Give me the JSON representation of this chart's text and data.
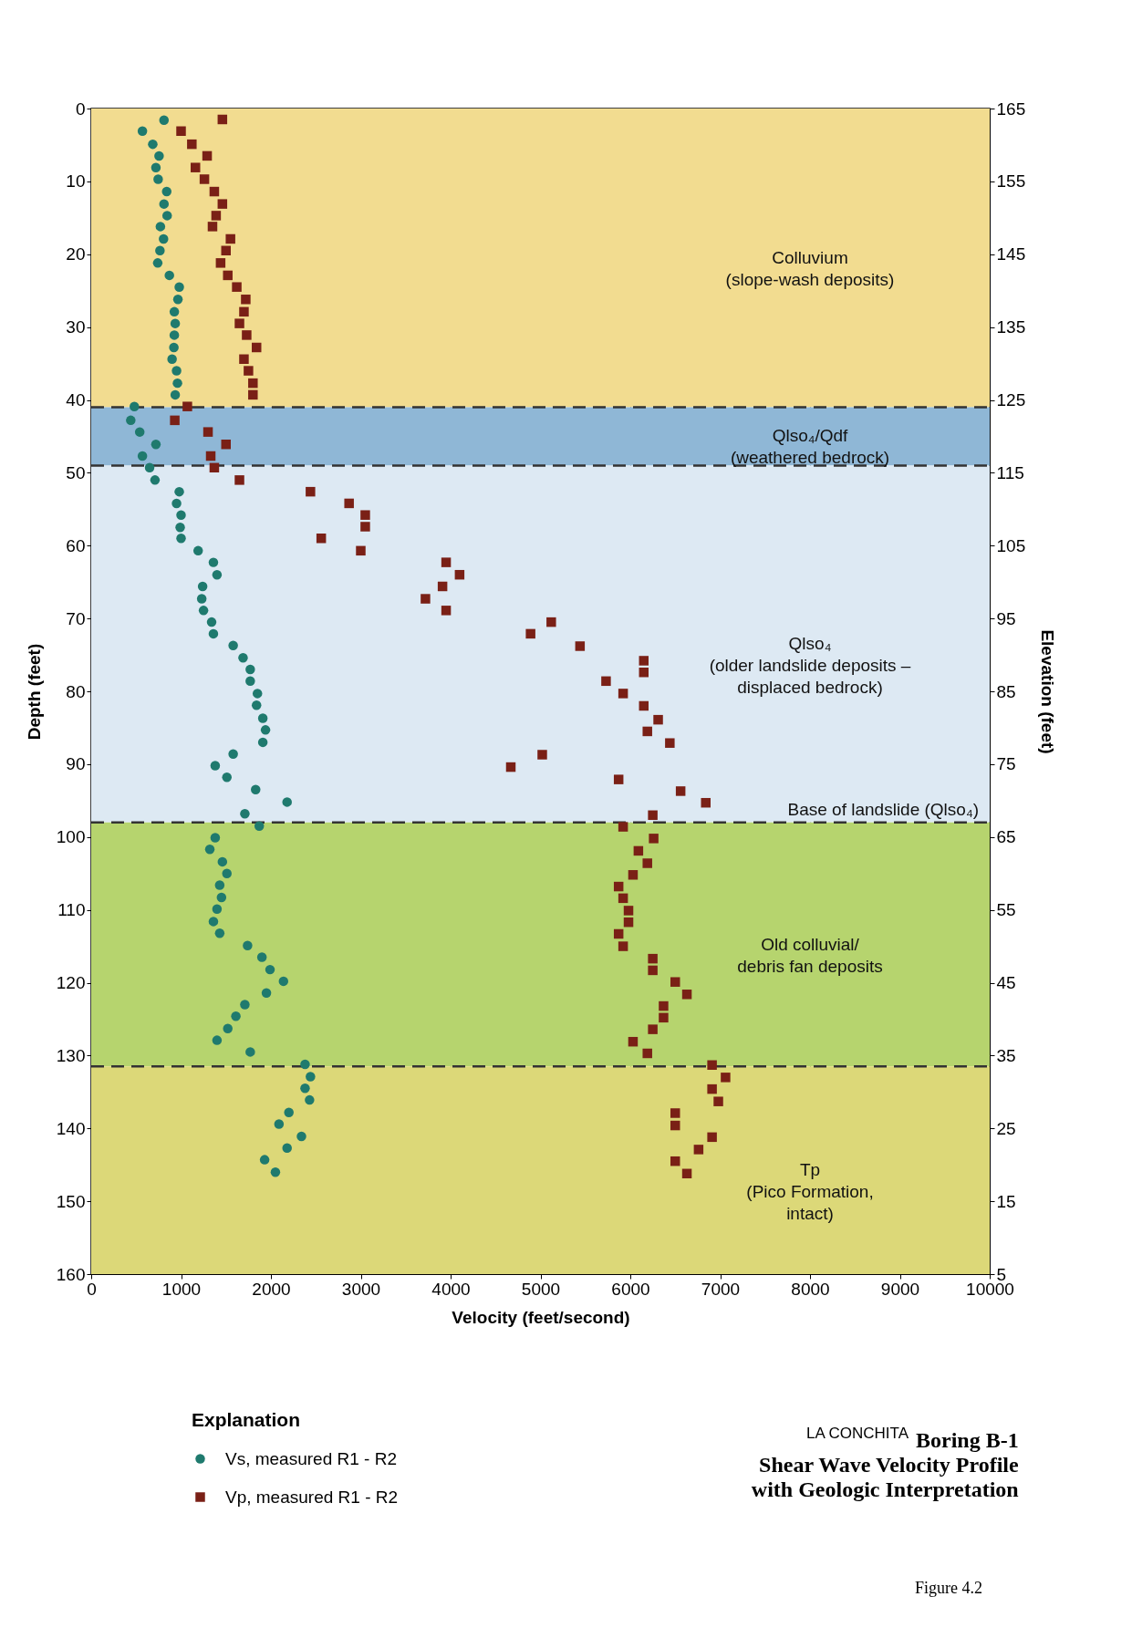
{
  "chart_data": {
    "type": "scatter",
    "title": "Boring B-1\nShear Wave Velocity Profile\nwith Geologic Interpretation",
    "xlabel": "Velocity (feet/second)",
    "ylabel": "Depth (feet)",
    "y2label": "Elevation (feet)",
    "legend_title": "Explanation",
    "legend": "bottom left",
    "grid": true,
    "xlim": [
      0,
      10000
    ],
    "xticks": [
      0,
      1000,
      2000,
      3000,
      4000,
      5000,
      6000,
      7000,
      8000,
      9000,
      10000
    ],
    "ylim": [
      160,
      0
    ],
    "yticks": [
      0,
      10,
      20,
      30,
      40,
      50,
      60,
      70,
      80,
      90,
      100,
      110,
      120,
      130,
      140,
      150,
      160
    ],
    "y2lim": [
      5,
      165
    ],
    "y2ticks": [
      5,
      15,
      25,
      35,
      45,
      55,
      65,
      75,
      85,
      95,
      105,
      115,
      125,
      135,
      145,
      155,
      165
    ],
    "series": [
      {
        "name": "Vs, measured  R1 - R2",
        "color": "#1f7a6e",
        "marker": "circle",
        "x": [
          810,
          570,
          685,
          755,
          720,
          745,
          840,
          810,
          845,
          770,
          805,
          765,
          740,
          870,
          980,
          965,
          925,
          935,
          925,
          920,
          900,
          950,
          960,
          935,
          480,
          440,
          540,
          720,
          570,
          650,
          710,
          980,
          950,
          1000,
          990,
          1000,
          1190,
          1360,
          1400,
          1240,
          1230,
          1250,
          1340,
          1360,
          1580,
          1690,
          1770,
          1770,
          1850,
          1840,
          1910,
          1940,
          1910,
          1580,
          1380,
          1510,
          1830,
          2180,
          1710,
          1870,
          1380,
          1320,
          1460,
          1510,
          1430,
          1450,
          1400,
          1360,
          1430,
          1740,
          1900,
          1990,
          2140,
          1950,
          1710,
          1610,
          1520,
          1400,
          1770,
          2380,
          2440,
          2380,
          2430,
          2200,
          2090,
          2340,
          2180,
          1930,
          2050
        ],
        "values": [
          1.6,
          3.1,
          4.9,
          6.5,
          8.1,
          9.7,
          11.4,
          13.1,
          14.7,
          16.2,
          17.9,
          19.5,
          21.2,
          22.9,
          24.5,
          26.2,
          27.9,
          29.5,
          31.1,
          32.8,
          34.4,
          36,
          37.7,
          39.3,
          40.9,
          42.8,
          44.4,
          46.1,
          47.7,
          49.3,
          51,
          52.6,
          54.2,
          55.8,
          57.5,
          59,
          60.7,
          62.3,
          64,
          65.6,
          67.3,
          68.9,
          70.5,
          72.1,
          73.7,
          75.4,
          77,
          78.6,
          80.3,
          81.9,
          83.7,
          85.3,
          87,
          88.6,
          90.2,
          91.8,
          93.5,
          95.2,
          96.8,
          98.5,
          100.1,
          101.7,
          103.4,
          105,
          106.6,
          108.3,
          109.9,
          111.6,
          113.2,
          114.9,
          116.5,
          118.2,
          119.8,
          121.4,
          123,
          124.6,
          126.3,
          127.9,
          129.5,
          131.2,
          132.9,
          134.5,
          136.1,
          137.8,
          139.4,
          141.1,
          142.7,
          144.3,
          146
        ]
      },
      {
        "name": "Vp, measured  R1 - R2",
        "color": "#7a2016",
        "marker": "square",
        "x": [
          1460,
          1000,
          1120,
          1290,
          1160,
          1260,
          1370,
          1460,
          1390,
          1350,
          1550,
          1500,
          1440,
          1520,
          1620,
          1720,
          1700,
          1650,
          1730,
          1840,
          1700,
          1750,
          1800,
          1800,
          1070,
          930,
          1300,
          1500,
          1330,
          1370,
          1650,
          2440,
          2870,
          3050,
          3050,
          2560,
          3000,
          3950,
          4100,
          3910,
          3720,
          3950,
          5120,
          4890,
          5440,
          6150,
          6150,
          5730,
          5920,
          6150,
          6310,
          6190,
          6440,
          5020,
          4670,
          5870,
          6560,
          6840,
          6250,
          5920,
          6260,
          6090,
          6190,
          6030,
          5870,
          5920,
          5980,
          5980,
          5870,
          5920,
          6250,
          6250,
          6500,
          6630,
          6370,
          6370,
          6250,
          6030,
          6190,
          6910,
          7060,
          6910,
          6980,
          6500,
          6500,
          6910,
          6760,
          6500,
          6630
        ],
        "values": [
          1.5,
          3.1,
          4.9,
          6.5,
          8.1,
          9.7,
          11.4,
          13.1,
          14.7,
          16.2,
          17.9,
          19.5,
          21.2,
          22.9,
          24.5,
          26.2,
          27.9,
          29.5,
          31.1,
          32.8,
          34.4,
          36,
          37.7,
          39.3,
          40.9,
          42.8,
          44.4,
          46.1,
          47.7,
          49.3,
          51,
          52.6,
          54.2,
          55.8,
          57.4,
          59,
          60.7,
          62.3,
          64,
          65.6,
          67.3,
          68.9,
          70.5,
          72.1,
          73.8,
          75.8,
          77.4,
          78.6,
          80.3,
          82,
          83.9,
          85.5,
          87.1,
          88.7,
          90.4,
          92.1,
          93.7,
          95.3,
          97,
          98.6,
          100.2,
          101.9,
          103.6,
          105.2,
          106.8,
          108.4,
          110.1,
          111.7,
          113.3,
          115,
          116.7,
          118.3,
          119.9,
          121.6,
          123.2,
          124.8,
          126.4,
          128.1,
          129.7,
          131.3,
          133,
          134.6,
          136.3,
          137.9,
          139.6,
          141.2,
          142.9,
          144.5,
          146.2
        ]
      }
    ],
    "bands": [
      {
        "axis": "y",
        "from": 0,
        "to": 41,
        "label": "Colluvium\n(slope-wash deposits)",
        "color": "#f2dc90"
      },
      {
        "axis": "y",
        "from": 41,
        "to": 49,
        "label": "Qlso₄/Qdf\n(weathered bedrock)",
        "color": "#8fb7d6"
      },
      {
        "axis": "y",
        "from": 49,
        "to": 98,
        "label": "Qlso₄\n(older landslide deposits –\ndisplaced bedrock)",
        "color": "#dde9f3"
      },
      {
        "axis": "y",
        "from": 98,
        "to": 131.5,
        "label": "Old colluvial/\ndebris fan deposits",
        "color": "#b6d46e"
      },
      {
        "axis": "y",
        "from": 131.5,
        "to": 160,
        "label": "Tp\n(Pico Formation,\nintact)",
        "color": "#dcd878"
      }
    ],
    "ref_lines": [
      {
        "axis": "y",
        "value": 41,
        "color": "#333333",
        "line_style": "dashed"
      },
      {
        "axis": "y",
        "value": 49,
        "color": "#333333",
        "line_style": "dashed"
      },
      {
        "axis": "y",
        "value": 98,
        "label": "Base of landslide (Qlso₄)",
        "color": "#333333",
        "line_style": "dashed"
      },
      {
        "axis": "y",
        "value": 131.5,
        "color": "#333333",
        "line_style": "dashed"
      }
    ],
    "annotations": [
      "LA CONCHITA",
      "Figure 4.2"
    ]
  }
}
